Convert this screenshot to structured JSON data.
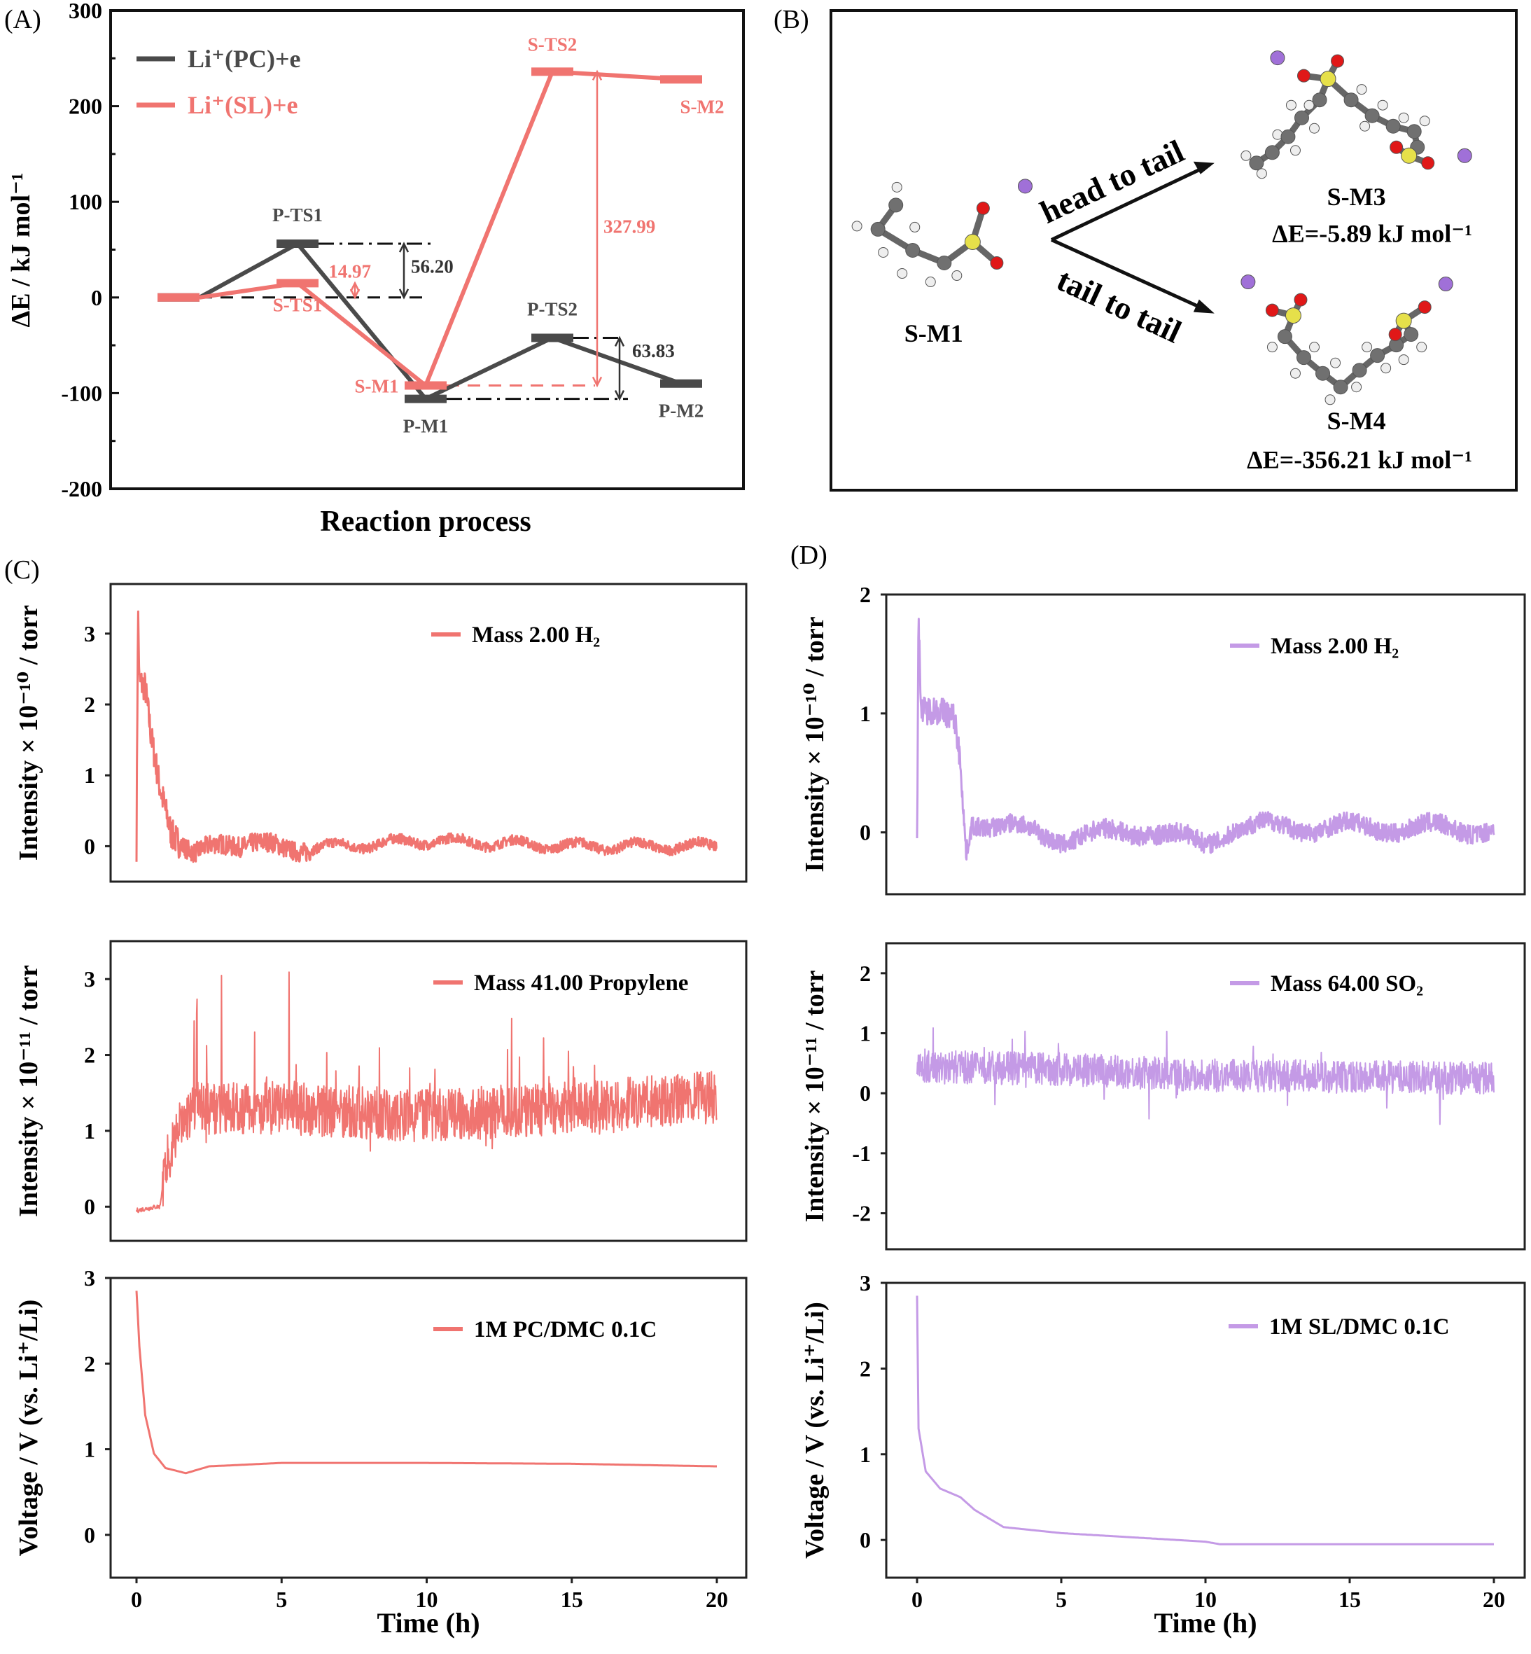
{
  "panel_labels": {
    "a": "(A)",
    "b": "(B)",
    "c": "(C)",
    "d": "(D)"
  },
  "chart_data": [
    {
      "type": "line",
      "ylabel": "ΔE / kJ mol⁻¹",
      "xlabel": "Reaction process",
      "ylim": [
        -200,
        300
      ],
      "yticks": [
        300,
        200,
        100,
        0,
        -100,
        -200
      ],
      "legend": "top-left",
      "series": [
        {
          "name": "Li⁺(PC)+e",
          "color": "#4a4a4a",
          "levels": [
            {
              "value": 0
            },
            {
              "label": "P-TS1",
              "value": 56.2
            },
            {
              "label": "P-M1",
              "value": -106
            },
            {
              "label": "P-TS2",
              "value": -42.2
            },
            {
              "label": "P-M2",
              "value": -90
            }
          ]
        },
        {
          "name": "Li⁺(SL)+e",
          "color": "#f07470",
          "levels": [
            {
              "value": 0
            },
            {
              "label": "S-TS1",
              "value": 14.97
            },
            {
              "label": "S-M1",
              "value": -92
            },
            {
              "label": "S-TS2",
              "value": 236
            },
            {
              "label": "S-M2",
              "value": 228
            }
          ]
        }
      ],
      "annotations": [
        {
          "text": "14.97",
          "color": "#f07470"
        },
        {
          "text": "56.20",
          "color": "#333333"
        },
        {
          "text": "327.99",
          "color": "#f07470"
        },
        {
          "text": "63.83",
          "color": "#333333"
        }
      ]
    },
    {
      "type": "line",
      "ylabel": "Intensity × 10⁻¹⁰ / torr",
      "xlim": [
        0,
        20
      ],
      "ylim": [
        -0.5,
        3.7
      ],
      "yticks": [
        0,
        1,
        2,
        3
      ],
      "legend": "top-right",
      "series": [
        {
          "name": "Mass 2.00 H₂",
          "color": "#f07470",
          "x": [
            0,
            0.05,
            0.1,
            0.3,
            0.5,
            0.8,
            1.2,
            2,
            3,
            4,
            5,
            7,
            10,
            12,
            15,
            20
          ],
          "y": [
            0,
            3.35,
            2.3,
            2.2,
            1.5,
            0.8,
            0.2,
            -0.08,
            0,
            0.08,
            -0.05,
            0,
            0.08,
            0.05,
            0,
            0
          ]
        }
      ]
    },
    {
      "type": "line",
      "ylabel": "Intensity × 10⁻¹¹ / torr",
      "xlim": [
        0,
        20
      ],
      "ylim": [
        -0.45,
        3.5
      ],
      "yticks": [
        0,
        1,
        2,
        3
      ],
      "legend": "top-right",
      "series": [
        {
          "name": "Mass 41.00 Propylene",
          "color": "#f07470",
          "x": [
            0,
            0.7,
            0.8,
            1.0,
            1.3,
            2,
            5,
            10,
            15,
            20
          ],
          "y": [
            -0.05,
            0,
            0,
            0.5,
            0.95,
            1.3,
            1.3,
            1.2,
            1.3,
            1.45
          ]
        }
      ]
    },
    {
      "type": "line",
      "ylabel": "Voltage / V (vs. Li⁺/Li)",
      "xlabel": "Time (h)",
      "xlim": [
        0,
        20
      ],
      "ylim": [
        -0.5,
        3
      ],
      "yticks": [
        0,
        1,
        2,
        3
      ],
      "xticks": [
        0,
        5,
        10,
        15,
        20
      ],
      "legend": "top-right",
      "series": [
        {
          "name": "1M PC/DMC 0.1C",
          "color": "#f07470",
          "x": [
            0,
            0.1,
            0.3,
            0.6,
            1,
            1.7,
            2.5,
            5,
            10,
            15,
            20
          ],
          "y": [
            2.85,
            2.2,
            1.4,
            0.95,
            0.78,
            0.72,
            0.8,
            0.84,
            0.84,
            0.83,
            0.8
          ]
        }
      ]
    },
    {
      "type": "line",
      "ylabel": "Intensity × 10⁻¹⁰ / torr",
      "xlim": [
        0,
        20
      ],
      "ylim": [
        -0.52,
        2
      ],
      "yticks": [
        0,
        1,
        2
      ],
      "legend": "top-right",
      "series": [
        {
          "name": "Mass 2.00 H₂",
          "color": "#c49ae6",
          "x": [
            0,
            0.05,
            0.15,
            1.3,
            1.5,
            1.7,
            1.9,
            3,
            5,
            8,
            10,
            11,
            20
          ],
          "y": [
            -0.15,
            1.8,
            1.0,
            0.95,
            0.6,
            -0.15,
            0.1,
            0.05,
            -0.05,
            0.02,
            -0.1,
            0.05,
            0.03
          ]
        }
      ]
    },
    {
      "type": "line",
      "ylabel": "Intensity × 10⁻¹¹ / torr",
      "xlim": [
        0,
        20
      ],
      "ylim": [
        -2.6,
        2.5
      ],
      "yticks": [
        -2,
        -1,
        0,
        1,
        2
      ],
      "legend": "top-right",
      "series": [
        {
          "name": "Mass 64.00 SO₂",
          "color": "#c49ae6",
          "x": [
            0,
            5,
            10,
            20
          ],
          "y": [
            0.45,
            0.4,
            0.3,
            0.25
          ]
        }
      ]
    },
    {
      "type": "line",
      "ylabel": "Voltage / V (vs. Li⁺/Li)",
      "xlabel": "Time (h)",
      "xlim": [
        0,
        20
      ],
      "ylim": [
        -0.44,
        3
      ],
      "yticks": [
        0,
        1,
        2,
        3
      ],
      "xticks": [
        0,
        5,
        10,
        15,
        20
      ],
      "legend": "top-right",
      "series": [
        {
          "name": "1M SL/DMC 0.1C",
          "color": "#c49ae6",
          "x": [
            0,
            0.05,
            0.3,
            0.8,
            1.5,
            2,
            3,
            5,
            8,
            10,
            10.5,
            20
          ],
          "y": [
            2.85,
            1.3,
            0.8,
            0.6,
            0.5,
            0.35,
            0.15,
            0.08,
            0.02,
            -0.02,
            -0.05,
            -0.05
          ]
        }
      ]
    }
  ],
  "scheme": {
    "reactant": "S-M1",
    "path_top": "head to tail",
    "path_bottom": "tail to tail",
    "product_top": {
      "name": "S-M3",
      "energy": "ΔE=-5.89 kJ mol⁻¹"
    },
    "product_bottom": {
      "name": "S-M4",
      "energy": "ΔE=-356.21 kJ mol⁻¹"
    },
    "atom_colors": {
      "C": "#707070",
      "H": "#eeeeee",
      "S": "#e6e04a",
      "O": "#e01818",
      "Li": "#a070d8"
    }
  }
}
